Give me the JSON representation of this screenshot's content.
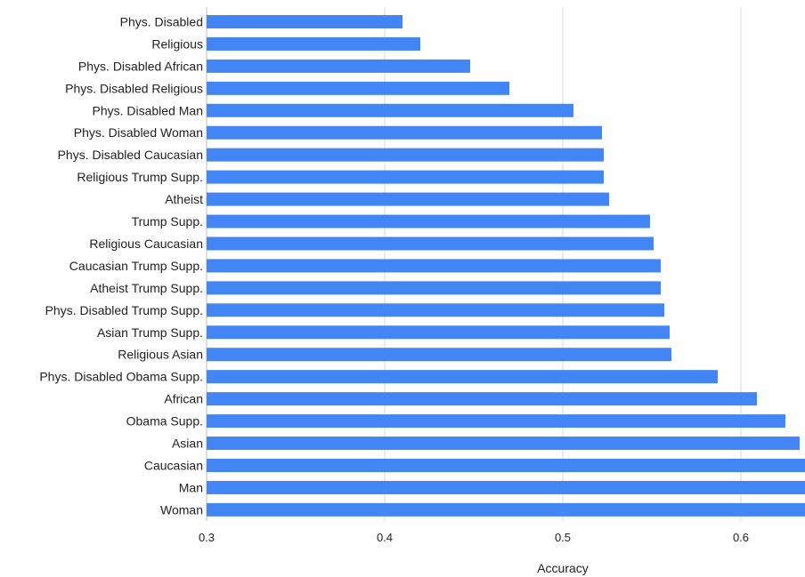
{
  "chart_data": {
    "type": "bar",
    "orientation": "horizontal",
    "categories": [
      "Phys. Disabled",
      "Religious",
      "Phys. Disabled African",
      "Phys. Disabled Religious",
      "Phys. Disabled Man",
      "Phys. Disabled Woman",
      "Phys. Disabled Caucasian",
      "Religious Trump Supp.",
      "Atheist",
      "Trump Supp.",
      "Religious Caucasian",
      "Caucasian Trump Supp.",
      "Atheist Trump Supp.",
      "Phys. Disabled Trump Supp.",
      "Asian Trump Supp.",
      "Religious Asian",
      "Phys. Disabled Obama Supp.",
      "African",
      "Obama Supp.",
      "Asian",
      "Caucasian",
      "Man",
      "Woman"
    ],
    "values": [
      0.41,
      0.42,
      0.448,
      0.47,
      0.506,
      0.522,
      0.523,
      0.523,
      0.526,
      0.549,
      0.551,
      0.555,
      0.555,
      0.557,
      0.56,
      0.561,
      0.587,
      0.609,
      0.625,
      0.633,
      0.64,
      0.64,
      0.64
    ],
    "xlabel": "Accuracy",
    "ylabel": "",
    "xlim": [
      0.3,
      0.636
    ],
    "xticks": [
      "0.3",
      "0.4",
      "0.5",
      "0.6"
    ],
    "xtick_values": [
      0.3,
      0.4,
      0.5,
      0.6
    ],
    "grid": true,
    "bar_color": "#4285f4"
  }
}
